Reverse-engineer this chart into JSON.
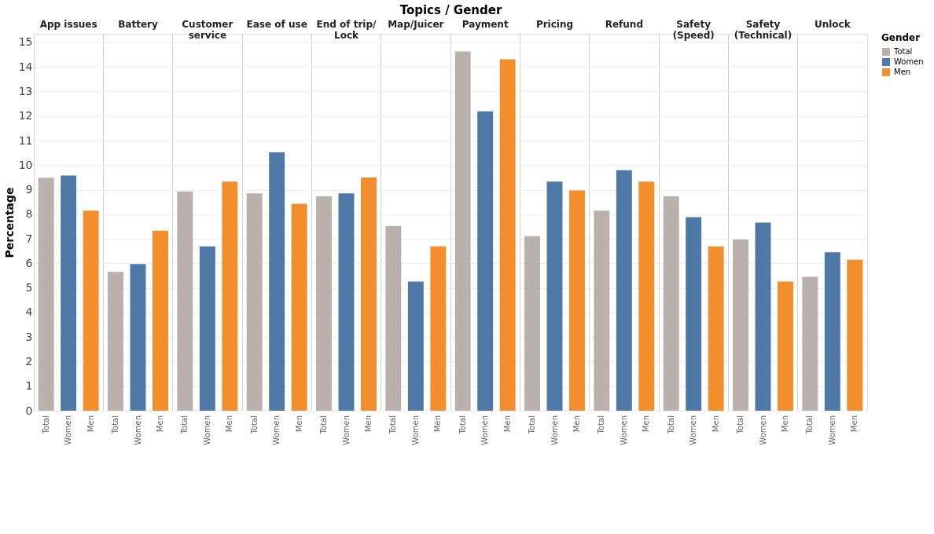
{
  "chart_data": {
    "type": "bar",
    "xlabel": "Topics / Gender",
    "ylabel": "Percentage",
    "legend_title": "Gender",
    "categories": [
      "App issues",
      "Battery",
      "Customer service",
      "Ease of use",
      "End of trip/ Lock",
      "Map/Juicer",
      "Payment",
      "Pricing",
      "Refund",
      "Safety (Speed)",
      "Safety (Technical)",
      "Unlock"
    ],
    "series": [
      {
        "name": "Total",
        "color": "#bab0ac",
        "values": [
          9.48,
          5.65,
          8.93,
          8.85,
          8.73,
          7.52,
          14.63,
          7.11,
          8.15,
          8.73,
          6.97,
          5.45
        ]
      },
      {
        "name": "Women",
        "color": "#4e79a7",
        "values": [
          9.58,
          5.97,
          6.69,
          10.52,
          8.85,
          5.26,
          12.19,
          9.33,
          9.79,
          7.88,
          7.66,
          6.45
        ]
      },
      {
        "name": "Men",
        "color": "#f28e2b",
        "values": [
          8.15,
          7.33,
          9.33,
          8.43,
          9.5,
          6.69,
          14.31,
          8.97,
          9.33,
          6.69,
          5.26,
          6.15
        ]
      }
    ],
    "ylim": [
      0,
      15.35
    ],
    "yticks": [
      0,
      1,
      2,
      3,
      4,
      5,
      6,
      7,
      8,
      9,
      10,
      11,
      12,
      13,
      14,
      15
    ],
    "grid": true,
    "legend": "top right"
  }
}
